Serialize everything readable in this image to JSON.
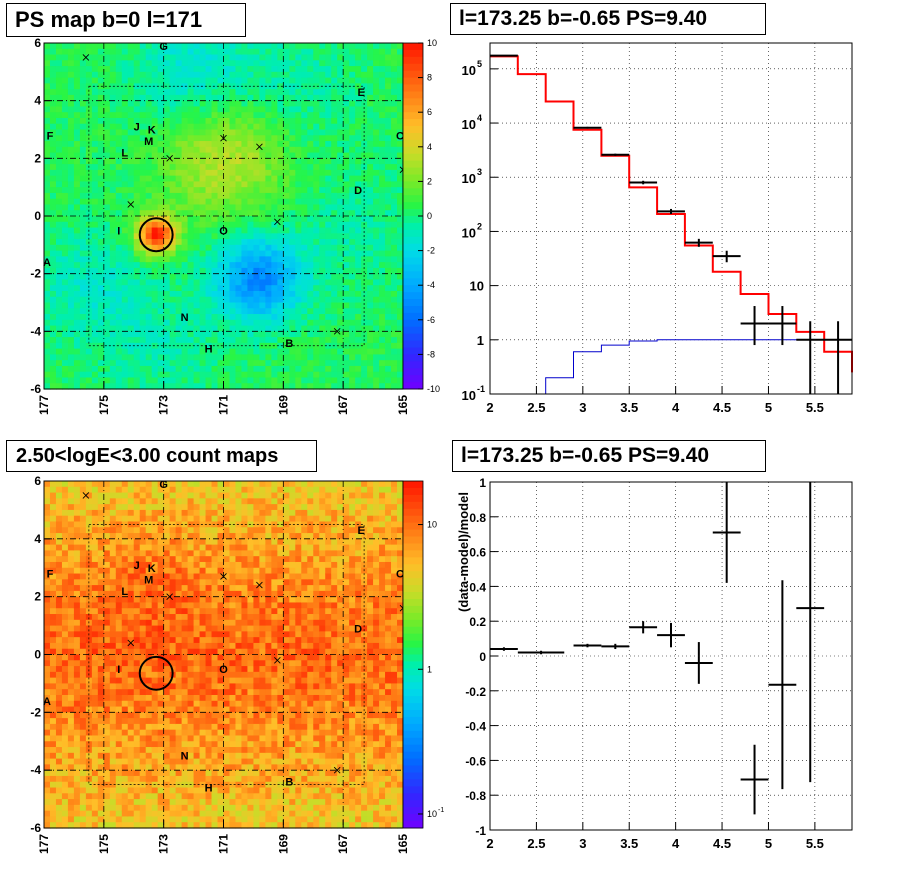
{
  "titles": {
    "ps_map": "PS map b=0 l=171",
    "spectrum": "l=173.25 b=-0.65 PS=9.40",
    "count_map": "2.50<logE<3.00 count maps",
    "residual": "l=173.25 b=-0.65 PS=9.40"
  },
  "map_axes": {
    "x_ticks": [
      "177",
      "175",
      "173",
      "171",
      "169",
      "167",
      "165"
    ],
    "y_ticks": [
      "6",
      "4",
      "2",
      "0",
      "-2",
      "-4",
      "-6"
    ],
    "x_range": [
      177,
      165
    ],
    "y_range": [
      -6,
      6
    ]
  },
  "sources": [
    {
      "label": "A",
      "l": 176.9,
      "b": -1.6
    },
    {
      "label": "B",
      "l": 168.8,
      "b": -4.4
    },
    {
      "label": "C",
      "l": 165.1,
      "b": 2.8
    },
    {
      "label": "D",
      "l": 166.5,
      "b": 0.9
    },
    {
      "label": "E",
      "l": 166.4,
      "b": 4.3
    },
    {
      "label": "F",
      "l": 176.8,
      "b": 2.8
    },
    {
      "label": "G",
      "l": 173.0,
      "b": 5.9
    },
    {
      "label": "H",
      "l": 171.5,
      "b": -4.6
    },
    {
      "label": "I",
      "l": 174.5,
      "b": -0.5
    },
    {
      "label": "J",
      "l": 173.9,
      "b": 3.1
    },
    {
      "label": "K",
      "l": 173.4,
      "b": 3.0
    },
    {
      "label": "L",
      "l": 174.3,
      "b": 2.2
    },
    {
      "label": "M",
      "l": 173.5,
      "b": 2.6
    },
    {
      "label": "N",
      "l": 172.3,
      "b": -3.5
    },
    {
      "label": "O",
      "l": 171.0,
      "b": -0.5
    }
  ],
  "crosses": [
    {
      "l": 175.6,
      "b": 5.5
    },
    {
      "l": 174.1,
      "b": 0.4
    },
    {
      "l": 172.8,
      "b": 2.0
    },
    {
      "l": 171.0,
      "b": 2.7
    },
    {
      "l": 169.8,
      "b": 2.4
    },
    {
      "l": 169.2,
      "b": -0.2
    },
    {
      "l": 167.2,
      "b": -4.0
    },
    {
      "l": 165.0,
      "b": 1.6
    }
  ],
  "target": {
    "l": 173.25,
    "b": -0.65,
    "radius_deg": 0.55
  },
  "ps_colorbar": {
    "min": -10,
    "max": 10,
    "ticks": [
      "10",
      "8",
      "6",
      "4",
      "2",
      "0",
      "-2",
      "-4",
      "-6",
      "-8",
      "-10"
    ]
  },
  "count_colorbar": {
    "ticks": [
      "10",
      "1"
    ],
    "bottom_label": "10",
    "bottom_exp": "-1"
  },
  "chart_data": [
    {
      "type": "heatmap",
      "title": "PS map b=0 l=171",
      "xlim": [
        177,
        165
      ],
      "ylim": [
        -6,
        6
      ],
      "colorbar_range": [
        -10,
        10
      ],
      "features": [
        {
          "l": 173.25,
          "b": -0.65,
          "value": 9.4
        },
        {
          "l": 169.8,
          "b": -2.2,
          "value": -5.5
        },
        {
          "l": 171.0,
          "b": 2.0,
          "value": 3.0
        },
        {
          "l": 168.5,
          "b": 4.5,
          "value": -1.0
        },
        {
          "l": 172.0,
          "b": 5.0,
          "value": -2.0
        },
        {
          "l": 175.5,
          "b": -2.5,
          "value": -1.5
        },
        {
          "l": 173.0,
          "b": -4.5,
          "value": -1.0
        },
        {
          "l": 166.5,
          "b": -0.5,
          "value": -1.0
        }
      ]
    },
    {
      "type": "line",
      "title": "l=173.25 b=-0.65 PS=9.40",
      "xlim": [
        2.0,
        5.9
      ],
      "ylim": [
        0.1,
        300000
      ],
      "yscale": "log",
      "x_ticks": [
        "2",
        "2.5",
        "3",
        "3.5",
        "4",
        "4.5",
        "5",
        "5.5"
      ],
      "y_tick_labels": [
        {
          "v": 100000,
          "base": "10",
          "exp": "5"
        },
        {
          "v": 10000,
          "base": "10",
          "exp": "4"
        },
        {
          "v": 1000,
          "base": "10",
          "exp": "3"
        },
        {
          "v": 100,
          "base": "10",
          "exp": "2"
        },
        {
          "v": 10,
          "base": "10",
          "exp": ""
        },
        {
          "v": 1,
          "base": "1",
          "exp": ""
        },
        {
          "v": 0.1,
          "base": "10",
          "exp": "-1"
        }
      ],
      "bin_edges": [
        2.0,
        2.3,
        2.6,
        2.9,
        3.2,
        3.5,
        3.8,
        4.1,
        4.4,
        4.7,
        5.0,
        5.3,
        5.6,
        5.9
      ],
      "series": [
        {
          "color": "#ff0000",
          "values": [
            170000,
            80000,
            25000,
            7500,
            2500,
            650,
            210,
            55,
            18,
            7,
            3,
            1.4,
            0.6,
            0.25
          ]
        },
        {
          "color": "#0000cc",
          "values": [
            0.05,
            0.07,
            0.2,
            0.6,
            0.8,
            0.95,
            1.0,
            1.0,
            1.0,
            1.0,
            1.0,
            1.0,
            1.0,
            1.0
          ]
        }
      ],
      "data_points": [
        {
          "x": 2.15,
          "y": 175000,
          "xerr": 0.15,
          "ylo": 172000,
          "yhi": 178000
        },
        {
          "x": 3.05,
          "y": 8200,
          "xerr": 0.15,
          "ylo": 7900,
          "yhi": 8500
        },
        {
          "x": 3.35,
          "y": 2600,
          "xerr": 0.15,
          "ylo": 2480,
          "yhi": 2720
        },
        {
          "x": 3.65,
          "y": 800,
          "xerr": 0.15,
          "ylo": 740,
          "yhi": 860
        },
        {
          "x": 3.95,
          "y": 235,
          "xerr": 0.15,
          "ylo": 210,
          "yhi": 260
        },
        {
          "x": 4.25,
          "y": 62,
          "xerr": 0.15,
          "ylo": 52,
          "yhi": 73
        },
        {
          "x": 4.55,
          "y": 35,
          "xerr": 0.15,
          "ylo": 27,
          "yhi": 44
        },
        {
          "x": 4.85,
          "y": 2,
          "xerr": 0.15,
          "ylo": 0.8,
          "yhi": 4.2
        },
        {
          "x": 5.15,
          "y": 2,
          "xerr": 0.15,
          "ylo": 0.8,
          "yhi": 4.2
        },
        {
          "x": 5.45,
          "y": 1,
          "xerr": 0.15,
          "ylo": 0.1,
          "yhi": 2.2
        },
        {
          "x": 5.75,
          "y": 1,
          "xerr": 0.15,
          "ylo": 0.1,
          "yhi": 2.2
        }
      ]
    },
    {
      "type": "heatmap",
      "title": "2.50<logE<3.00 count maps",
      "xlim": [
        177,
        165
      ],
      "ylim": [
        -6,
        6
      ],
      "colorbar_scale": "log",
      "colorbar_ticks": [
        0.1,
        1,
        10
      ]
    },
    {
      "type": "scatter",
      "title": "l=173.25 b=-0.65 PS=9.40",
      "ylabel": "(data-model)/model",
      "xlim": [
        2.0,
        5.9
      ],
      "ylim": [
        -1,
        1
      ],
      "x_ticks": [
        "2",
        "2.5",
        "3",
        "3.5",
        "4",
        "4.5",
        "5",
        "5.5"
      ],
      "y_ticks": [
        "1",
        "0.8",
        "0.6",
        "0.4",
        "0.2",
        "0",
        "-0.2",
        "-0.4",
        "-0.6",
        "-0.8",
        "-1"
      ],
      "points": [
        {
          "x": 2.15,
          "y": 0.04,
          "xerr": 0.15,
          "yerr": 0.01
        },
        {
          "x": 2.55,
          "y": 0.02,
          "xerr": 0.25,
          "yerr": 0.01
        },
        {
          "x": 3.05,
          "y": 0.06,
          "xerr": 0.15,
          "yerr": 0.01
        },
        {
          "x": 3.35,
          "y": 0.055,
          "xerr": 0.15,
          "yerr": 0.015
        },
        {
          "x": 3.65,
          "y": 0.165,
          "xerr": 0.15,
          "yerr": 0.035
        },
        {
          "x": 3.95,
          "y": 0.12,
          "xerr": 0.15,
          "yerr": 0.07
        },
        {
          "x": 4.25,
          "y": -0.04,
          "xerr": 0.15,
          "yerr": 0.12
        },
        {
          "x": 4.55,
          "y": 0.71,
          "xerr": 0.15,
          "yerr": 0.29
        },
        {
          "x": 4.85,
          "y": -0.71,
          "xerr": 0.15,
          "yerr": 0.2
        },
        {
          "x": 5.15,
          "y": -0.165,
          "xerr": 0.15,
          "yerr": 0.6
        },
        {
          "x": 5.45,
          "y": 0.275,
          "xerr": 0.15,
          "yerr": 1.0
        }
      ]
    }
  ]
}
